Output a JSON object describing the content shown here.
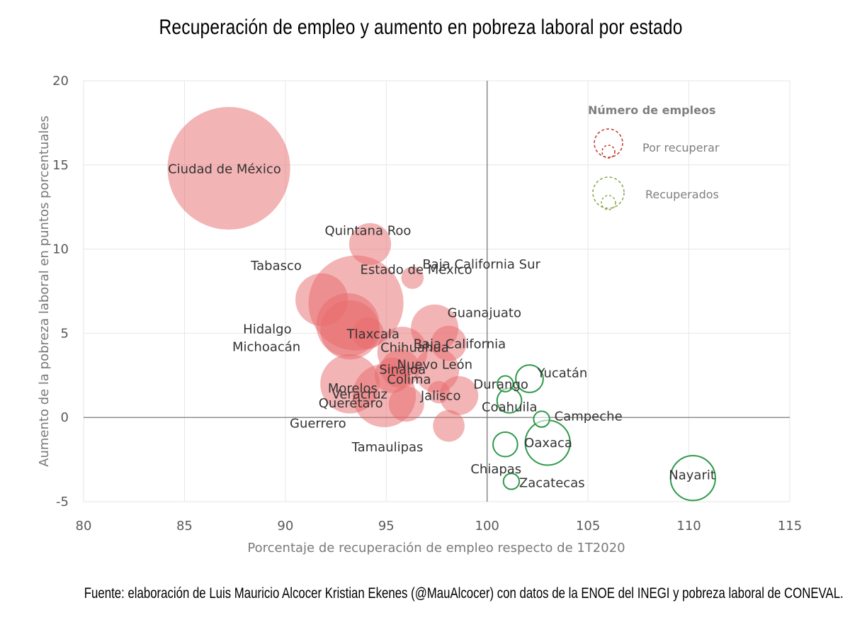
{
  "title": "Recuperación de empleo y aumento en pobreza laboral por estado",
  "source": "Fuente: elaboración de Luis Mauricio Alcocer Kristian Ekenes (@MauAlcocer) con datos de la ENOE del INEGI y pobreza laboral de CONEVAL.",
  "colors": {
    "to_recover": "#e8696c",
    "recovered": "#2e9a4a",
    "legend_red": "#c0392b",
    "legend_green": "#8aa84a"
  },
  "chart_data": {
    "type": "scatter",
    "variant": "bubble",
    "title": "Recuperación de empleo y aumento en pobreza laboral por estado",
    "xlabel": "Porcentaje de recuperación de empleo respecto de 1T2020",
    "ylabel": "Aumento de la pobreza laboral en puntos porcentuales",
    "xlim": [
      80,
      115
    ],
    "ylim": [
      -5,
      20
    ],
    "xticks": [
      80,
      85,
      90,
      95,
      100,
      105,
      110,
      115
    ],
    "yticks": [
      -5,
      0,
      5,
      10,
      15,
      20
    ],
    "grid": true,
    "reference_lines": {
      "x": 100,
      "y": 0
    },
    "legend": {
      "title": "Número de empleos",
      "position": "top-right",
      "items": [
        "Por recuperar",
        "Recuperados"
      ]
    },
    "series": [
      {
        "name": "Por recuperar",
        "points": [
          {
            "label": "Ciudad de México",
            "x": 87.2,
            "y": 14.8,
            "size": 3.0
          },
          {
            "label": "Quintana Roo",
            "x": 94.2,
            "y": 10.3,
            "size": 0.35
          },
          {
            "label": "Baja California Sur",
            "x": 96.3,
            "y": 8.3,
            "size": 0.1
          },
          {
            "label": "Tabasco",
            "x": 91.8,
            "y": 7.0,
            "size": 0.55
          },
          {
            "label": "Estado de México",
            "x": 93.5,
            "y": 6.8,
            "size": 1.8
          },
          {
            "label": "Hidalgo",
            "x": 93.1,
            "y": 5.5,
            "size": 0.8
          },
          {
            "label": "Michoacán",
            "x": 93.2,
            "y": 5.2,
            "size": 0.7
          },
          {
            "label": "Tlaxcala",
            "x": 94.1,
            "y": 5.0,
            "size": 0.2
          },
          {
            "label": "Guanajuato",
            "x": 97.4,
            "y": 5.3,
            "size": 0.45
          },
          {
            "label": "Baja California",
            "x": 98.1,
            "y": 4.4,
            "size": 0.25
          },
          {
            "label": "Chihuahua",
            "x": 95.8,
            "y": 3.9,
            "size": 0.5
          },
          {
            "label": "Sinaloa",
            "x": 95.7,
            "y": 2.9,
            "size": 0.3
          },
          {
            "label": "Morelos",
            "x": 95.3,
            "y": 2.5,
            "size": 0.25
          },
          {
            "label": "Nuevo León",
            "x": 97.5,
            "y": 2.8,
            "size": 0.4
          },
          {
            "label": "Guerrero",
            "x": 93.2,
            "y": 2.0,
            "size": 0.7
          },
          {
            "label": "Veracruz",
            "x": 94.9,
            "y": 1.3,
            "size": 0.8
          },
          {
            "label": "Colima",
            "x": 97.6,
            "y": 1.5,
            "size": 0.1
          },
          {
            "label": "Jalisco",
            "x": 98.6,
            "y": 1.3,
            "size": 0.3
          },
          {
            "label": "Querétaro",
            "x": 96.0,
            "y": 0.8,
            "size": 0.25
          },
          {
            "label": "Tamaulipas",
            "x": 98.1,
            "y": -0.5,
            "size": 0.2
          }
        ]
      },
      {
        "name": "Recuperados",
        "points": [
          {
            "label": "Durango",
            "x": 100.9,
            "y": 2.0,
            "size": 0.05
          },
          {
            "label": "Yucatán",
            "x": 102.1,
            "y": 2.3,
            "size": 0.15
          },
          {
            "label": "Coahuila",
            "x": 101.1,
            "y": 1.0,
            "size": 0.12
          },
          {
            "label": "Campeche",
            "x": 102.7,
            "y": -0.1,
            "size": 0.05
          },
          {
            "label": "Chiapas",
            "x": 100.9,
            "y": -1.6,
            "size": 0.12
          },
          {
            "label": "Oaxaca",
            "x": 103.0,
            "y": -1.5,
            "size": 0.4
          },
          {
            "label": "Zacatecas",
            "x": 101.2,
            "y": -3.8,
            "size": 0.05
          },
          {
            "label": "Nayarit",
            "x": 110.2,
            "y": -3.6,
            "size": 0.4
          }
        ]
      }
    ]
  }
}
